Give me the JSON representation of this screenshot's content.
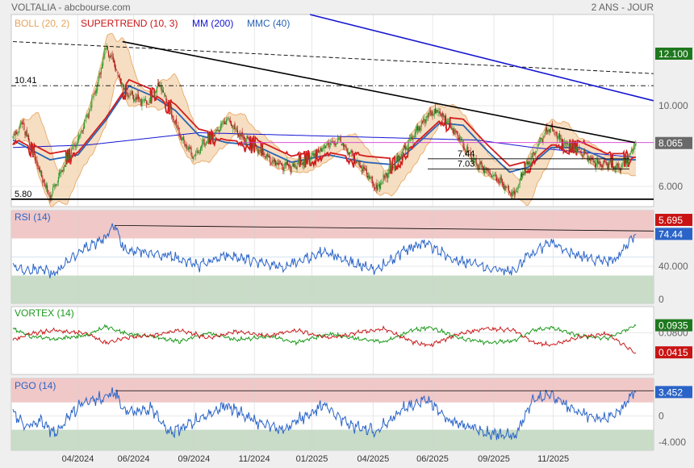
{
  "header": {
    "title": "VOLTALIA - abcbourse.com",
    "period": "2 ANS - JOUR"
  },
  "colors": {
    "background": "#efefef",
    "panel": "#ffffff",
    "grid": "#d2d2d2",
    "boll": "#e8a35a",
    "boll_fill": "#f3d3ae",
    "supertrend": "#d21e1e",
    "mm": "#1414d2",
    "mmc": "#2a64b4",
    "trend": "#000000",
    "candle_up": "#2f9a2f",
    "candle_down": "#b41e1e",
    "rsi": "#2a64c8",
    "vortex_pos": "#1e9a1e",
    "vortex_neg": "#c81e1e",
    "pgo": "#2a64c8",
    "overbought": "#f0c8c8",
    "oversold": "#c8dcc8",
    "label_green": "#1e781e",
    "label_red": "#c81414",
    "label_grey": "#646464",
    "level_pink": "#d23cd2"
  },
  "main_legend": [
    {
      "text": "BOLL (20, 2)",
      "color": "#e8a35a"
    },
    {
      "text": "SUPERTREND (10, 3)",
      "color": "#c81414"
    },
    {
      "text": "MM (200)",
      "color": "#1414d2"
    },
    {
      "text": "MMC (40)",
      "color": "#2a64b4"
    }
  ],
  "chart_data": [
    {
      "type": "candlestick",
      "ylim": [
        5.5,
        13.3
      ],
      "y_ticks": [
        "12.100",
        "10.000",
        "8.065",
        "6.000",
        "5.695"
      ],
      "level_labels": [
        "10.41",
        "7.44",
        "7.03",
        "5.80"
      ],
      "levels": [
        10.41,
        7.44,
        7.03,
        5.8,
        8.1
      ],
      "last_value": 8.065,
      "price_anchors": [
        [
          0,
          8.3
        ],
        [
          10,
          8.9
        ],
        [
          30,
          6.8
        ],
        [
          40,
          5.9
        ],
        [
          55,
          7.2
        ],
        [
          75,
          8.6
        ],
        [
          92,
          10.6
        ],
        [
          100,
          12.0
        ],
        [
          108,
          11.4
        ],
        [
          120,
          10.2
        ],
        [
          145,
          9.7
        ],
        [
          158,
          10.5
        ],
        [
          168,
          9.5
        ],
        [
          182,
          8.2
        ],
        [
          195,
          7.5
        ],
        [
          205,
          8.1
        ],
        [
          215,
          8.3
        ],
        [
          230,
          9.1
        ],
        [
          245,
          8.4
        ],
        [
          262,
          7.9
        ],
        [
          280,
          7.3
        ],
        [
          300,
          7.1
        ],
        [
          315,
          7.4
        ],
        [
          335,
          7.9
        ],
        [
          352,
          8.2
        ],
        [
          365,
          7.6
        ],
        [
          382,
          6.8
        ],
        [
          392,
          6.2
        ],
        [
          405,
          7.0
        ],
        [
          418,
          7.6
        ],
        [
          435,
          8.6
        ],
        [
          446,
          9.2
        ],
        [
          458,
          9.4
        ],
        [
          470,
          8.9
        ],
        [
          485,
          8.0
        ],
        [
          498,
          7.3
        ],
        [
          512,
          6.9
        ],
        [
          528,
          6.4
        ],
        [
          540,
          6.0
        ],
        [
          548,
          6.8
        ],
        [
          560,
          7.6
        ],
        [
          572,
          8.4
        ],
        [
          580,
          8.7
        ],
        [
          592,
          8.1
        ],
        [
          605,
          7.9
        ],
        [
          620,
          7.5
        ],
        [
          632,
          7.2
        ],
        [
          643,
          7.3
        ],
        [
          652,
          7.0
        ],
        [
          662,
          7.4
        ],
        [
          670,
          8.065
        ]
      ],
      "lines": [
        {
          "name": "MM (200)",
          "points": [
            [
              0,
              7.9
            ],
            [
              80,
              8.0
            ],
            [
              200,
              8.5
            ],
            [
              300,
              8.4
            ],
            [
              400,
              8.3
            ],
            [
              500,
              8.2
            ],
            [
              560,
              7.9
            ],
            [
              670,
              7.5
            ]
          ]
        },
        {
          "name": "MMC (40)",
          "points": [
            [
              0,
              8.2
            ],
            [
              40,
              7.4
            ],
            [
              70,
              7.6
            ],
            [
              100,
              9.0
            ],
            [
              125,
              10.4
            ],
            [
              150,
              10.0
            ],
            [
              175,
              9.4
            ],
            [
              200,
              8.4
            ],
            [
              230,
              8.1
            ],
            [
              260,
              8.0
            ],
            [
              300,
              7.3
            ],
            [
              340,
              7.6
            ],
            [
              380,
              7.3
            ],
            [
              410,
              7.2
            ],
            [
              440,
              8.2
            ],
            [
              460,
              8.9
            ],
            [
              485,
              8.8
            ],
            [
              510,
              7.8
            ],
            [
              535,
              6.9
            ],
            [
              555,
              7.1
            ],
            [
              580,
              7.9
            ],
            [
              610,
              7.9
            ],
            [
              640,
              7.4
            ],
            [
              670,
              7.4
            ]
          ]
        }
      ],
      "trendlines": [
        {
          "label": "downtrend",
          "points": [
            [
              118,
              12.2
            ],
            [
              670,
              8.1
            ]
          ],
          "style": "solid",
          "color": "#000000"
        },
        {
          "label": "long-term",
          "points": [
            [
              0,
              12.2
            ],
            [
              690,
              10.9
            ]
          ],
          "style": "dashed",
          "color": "#000000"
        },
        {
          "label": "MM trend",
          "points": [
            [
              320,
              13.3
            ],
            [
              690,
              9.8
            ]
          ],
          "style": "solid",
          "color": "#1414d2"
        }
      ]
    },
    {
      "type": "line",
      "title": "RSI (14)",
      "ylim": [
        0,
        100
      ],
      "y_ticks": [
        "74.44",
        "40.000",
        "0"
      ],
      "zones": [
        70,
        30
      ],
      "last_value": 74.44,
      "series": [
        {
          "name": "RSI (14)",
          "anchors": [
            [
              0,
              40
            ],
            [
              15,
              34
            ],
            [
              30,
              38
            ],
            [
              45,
              32
            ],
            [
              55,
              42
            ],
            [
              75,
              58
            ],
            [
              100,
              72
            ],
            [
              110,
              84
            ],
            [
              120,
              58
            ],
            [
              150,
              54
            ],
            [
              175,
              50
            ],
            [
              200,
              40
            ],
            [
              230,
              52
            ],
            [
              262,
              46
            ],
            [
              290,
              38
            ],
            [
              335,
              56
            ],
            [
              365,
              44
            ],
            [
              392,
              36
            ],
            [
              420,
              56
            ],
            [
              446,
              66
            ],
            [
              470,
              48
            ],
            [
              490,
              44
            ],
            [
              512,
              38
            ],
            [
              540,
              34
            ],
            [
              555,
              52
            ],
            [
              580,
              66
            ],
            [
              600,
              55
            ],
            [
              630,
              46
            ],
            [
              650,
              48
            ],
            [
              670,
              74
            ]
          ]
        }
      ]
    },
    {
      "type": "line",
      "title": "VORTEX (14)",
      "ylim": [
        0,
        0.13
      ],
      "y_ticks": [
        "0.0935",
        "0.0800",
        "0.0415"
      ],
      "last_values": [
        0.0935,
        0.0415
      ],
      "series": [
        {
          "name": "VI+",
          "anchors": [
            [
              0,
              0.088
            ],
            [
              20,
              0.072
            ],
            [
              45,
              0.068
            ],
            [
              80,
              0.075
            ],
            [
              100,
              0.092
            ],
            [
              120,
              0.079
            ],
            [
              150,
              0.072
            ],
            [
              180,
              0.063
            ],
            [
              210,
              0.08
            ],
            [
              240,
              0.066
            ],
            [
              275,
              0.073
            ],
            [
              305,
              0.062
            ],
            [
              340,
              0.078
            ],
            [
              372,
              0.068
            ],
            [
              400,
              0.062
            ],
            [
              430,
              0.085
            ],
            [
              450,
              0.09
            ],
            [
              480,
              0.07
            ],
            [
              510,
              0.061
            ],
            [
              540,
              0.064
            ],
            [
              560,
              0.085
            ],
            [
              580,
              0.09
            ],
            [
              610,
              0.074
            ],
            [
              640,
              0.069
            ],
            [
              670,
              0.0935
            ]
          ]
        },
        {
          "name": "VI-",
          "anchors": [
            [
              0,
              0.066
            ],
            [
              20,
              0.079
            ],
            [
              45,
              0.084
            ],
            [
              80,
              0.079
            ],
            [
              100,
              0.06
            ],
            [
              120,
              0.07
            ],
            [
              150,
              0.075
            ],
            [
              180,
              0.085
            ],
            [
              210,
              0.07
            ],
            [
              240,
              0.082
            ],
            [
              275,
              0.074
            ],
            [
              305,
              0.085
            ],
            [
              340,
              0.07
            ],
            [
              372,
              0.08
            ],
            [
              400,
              0.088
            ],
            [
              430,
              0.062
            ],
            [
              450,
              0.056
            ],
            [
              480,
              0.078
            ],
            [
              510,
              0.088
            ],
            [
              540,
              0.084
            ],
            [
              560,
              0.062
            ],
            [
              580,
              0.056
            ],
            [
              610,
              0.072
            ],
            [
              640,
              0.078
            ],
            [
              670,
              0.0415
            ]
          ]
        }
      ]
    },
    {
      "type": "line",
      "title": "PGO (14)",
      "ylim": [
        -5,
        5.5
      ],
      "y_ticks": [
        "3.452",
        "0",
        "-4.000"
      ],
      "zones": [
        2,
        -2
      ],
      "last_value": 3.452,
      "series": [
        {
          "name": "PGO (14)",
          "anchors": [
            [
              0,
              0.3
            ],
            [
              15,
              -1.5
            ],
            [
              30,
              -0.5
            ],
            [
              45,
              -2.6
            ],
            [
              55,
              -1.0
            ],
            [
              75,
              2.0
            ],
            [
              100,
              2.8
            ],
            [
              110,
              3.7
            ],
            [
              120,
              0.5
            ],
            [
              150,
              1.0
            ],
            [
              170,
              -2.5
            ],
            [
              200,
              -0.5
            ],
            [
              230,
              1.5
            ],
            [
              262,
              -0.8
            ],
            [
              290,
              -2.0
            ],
            [
              335,
              1.7
            ],
            [
              365,
              -1.5
            ],
            [
              392,
              -2.2
            ],
            [
              420,
              1.0
            ],
            [
              446,
              2.5
            ],
            [
              470,
              -0.7
            ],
            [
              490,
              -1.5
            ],
            [
              512,
              -2.5
            ],
            [
              540,
              -3.0
            ],
            [
              548,
              -1.0
            ],
            [
              560,
              2.5
            ],
            [
              580,
              3.2
            ],
            [
              600,
              1.0
            ],
            [
              630,
              -0.5
            ],
            [
              650,
              0.3
            ],
            [
              670,
              3.452
            ]
          ]
        }
      ]
    }
  ],
  "x_axis": {
    "labels": [
      "04/2024",
      "06/2024",
      "09/2024",
      "11/2024",
      "01/2025",
      "04/2025",
      "06/2025",
      "09/2025",
      "11/2025"
    ],
    "label_indices": [
      70,
      130,
      195,
      260,
      322,
      388,
      452,
      518,
      582
    ],
    "total_bars": 672
  }
}
